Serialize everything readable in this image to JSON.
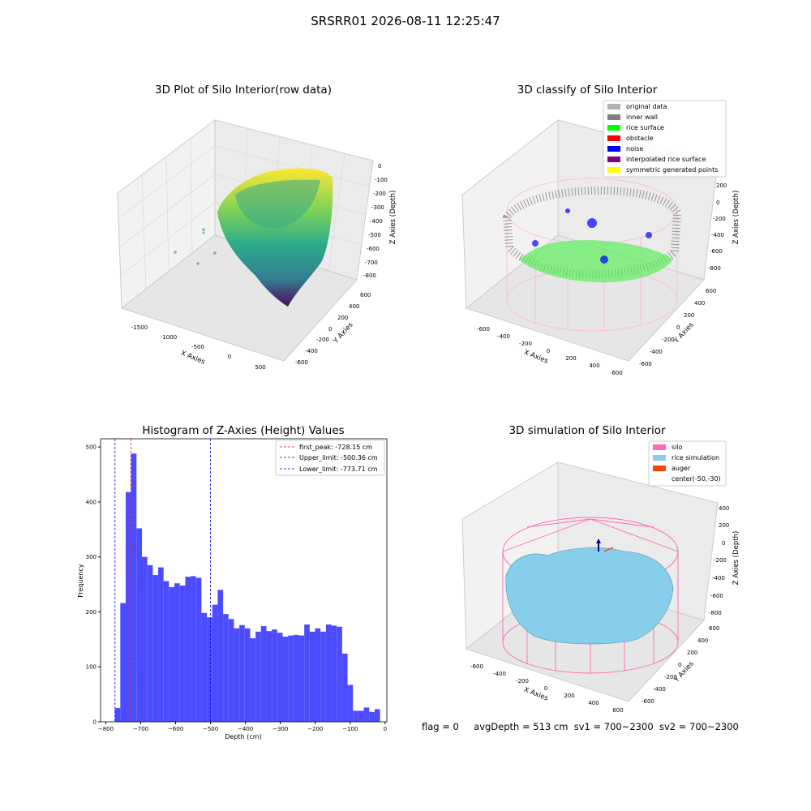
{
  "suptitle": "SRSRR01 2026-08-11 12:25:47",
  "colors": {
    "hist_bar": "#4c4cff",
    "first_peak": "#ff0000",
    "limits": "#0000ff",
    "silo": "#ff69b4",
    "rice_sim": "#87ceeb",
    "auger": "#ff4500",
    "original": "#b3b3b3",
    "inner_wall": "#808080",
    "rice_surface": "#00ff00",
    "obstacle": "#ff0000",
    "noise": "#0000ff",
    "interp": "#800080",
    "sym": "#ffff00"
  },
  "raw_panel": {
    "title": "3D Plot of Silo Interior(row data)",
    "x_label": "X Axies",
    "y_label": "Y Axies",
    "z_label": "Z Axies (Depth)",
    "x_ticks": [
      "-1500",
      "-1000",
      "-500",
      "0",
      "500"
    ],
    "y_ticks": [
      "600",
      "400",
      "200",
      "0",
      "-200",
      "-400",
      "-600"
    ],
    "z_ticks": [
      "0",
      "-100",
      "-200",
      "-300",
      "-400",
      "-500",
      "-600",
      "-700",
      "-800"
    ]
  },
  "classify_panel": {
    "title": "3D classify of Silo Interior",
    "x_label": "X Axies",
    "y_label": "Y Axies",
    "z_label": "Z Axies (Depth)",
    "x_ticks": [
      "-600",
      "-400",
      "-200",
      "0",
      "200",
      "400",
      "600"
    ],
    "y_ticks": [
      "600",
      "400",
      "200",
      "0",
      "-200",
      "-400",
      "-600"
    ],
    "z_ticks": [
      "200",
      "0",
      "-200",
      "-400",
      "-600",
      "-800"
    ],
    "legend": [
      {
        "label": "original data",
        "color": "#b3b3b3"
      },
      {
        "label": "inner wall",
        "color": "#808080"
      },
      {
        "label": "rice surface",
        "color": "#00ff00"
      },
      {
        "label": "obstacle",
        "color": "#ff0000"
      },
      {
        "label": "noise",
        "color": "#0000ff"
      },
      {
        "label": "interpolated rice surface",
        "color": "#800080"
      },
      {
        "label": "symmetric generated points",
        "color": "#ffff00"
      }
    ]
  },
  "sim_panel": {
    "title": "3D simulation of Silo Interior",
    "x_label": "X Axies",
    "y_label": "Y Axies",
    "z_label": "Z Axies (Depth)",
    "x_ticks": [
      "-600",
      "-400",
      "-200",
      "0",
      "200",
      "400",
      "600"
    ],
    "y_ticks": [
      "600",
      "400",
      "200",
      "0",
      "-200",
      "-400",
      "-600"
    ],
    "z_ticks": [
      "400",
      "200",
      "0",
      "-200",
      "-400",
      "-600",
      "-800"
    ],
    "legend": [
      {
        "label": "silo",
        "color": "#ff69b4"
      },
      {
        "label": "rice simulation",
        "color": "#87ceeb"
      },
      {
        "label": "auger",
        "color": "#ff4500"
      },
      {
        "label": "center(-50,-30)",
        "color": ""
      }
    ]
  },
  "footer": {
    "flag": "flag = 0",
    "avg": "avgDepth = 513 cm",
    "sv1": "sv1 = 700~2300",
    "sv2": "sv2 = 700~2300"
  },
  "chart_data": {
    "type": "bar",
    "title": "Histogram of Z-Axies (Height) Values",
    "xlabel": "Depth (cm)",
    "ylabel": "Frequency",
    "xlim": [
      -815,
      5
    ],
    "ylim": [
      0,
      515
    ],
    "xticks": [
      -800,
      -700,
      -600,
      -500,
      -400,
      -300,
      -200,
      -100,
      0
    ],
    "yticks": [
      0,
      100,
      200,
      300,
      400,
      500
    ],
    "bin_width": 15.5,
    "bin_start": -774,
    "values": [
      25,
      216,
      418,
      488,
      352,
      300,
      285,
      267,
      281,
      256,
      245,
      252,
      248,
      264,
      265,
      262,
      198,
      190,
      213,
      240,
      196,
      187,
      170,
      176,
      170,
      152,
      164,
      174,
      165,
      168,
      162,
      155,
      157,
      158,
      157,
      177,
      164,
      170,
      164,
      177,
      175,
      173,
      124,
      67,
      20,
      20,
      26,
      18,
      23
    ],
    "lines": [
      {
        "label": "first_peak: -728.15 cm",
        "x": -728.15,
        "color": "#ff0000"
      },
      {
        "label": "Upper_limit: -500.36 cm",
        "x": -500.36,
        "color": "#0000ff"
      },
      {
        "label": "Lower_limit: -773.71 cm",
        "x": -773.71,
        "color": "#0000ff"
      }
    ]
  }
}
